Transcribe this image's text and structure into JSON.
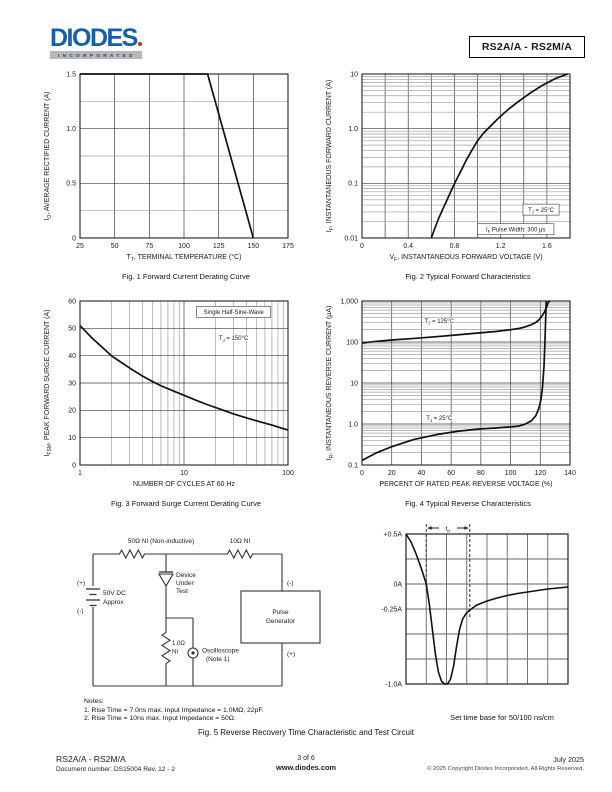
{
  "header": {
    "logo_text": "DIODES",
    "logo_sub": "INCORPORATED",
    "part_number": "RS2A/A - RS2M/A",
    "logo_color": "#155fa8",
    "accent_red": "#c9252c"
  },
  "chart_data": [
    {
      "id": "fig1",
      "type": "line",
      "title": "Fig. 1  Forward Current Derating Curve",
      "xlabel": "T~T~, TERMINAL TEMPERATURE (°C)",
      "ylabel": "I~O~, AVERAGE RECTIFIED CURRENT (A)",
      "x": {
        "scale": "linear",
        "min": 25,
        "max": 175,
        "grid_step": 25,
        "grid_majors": "all",
        "tick_vals": [
          25,
          50,
          75,
          100,
          125,
          150,
          175
        ],
        "tick_labels": [
          "25",
          "50",
          "75",
          "100",
          "125",
          "150",
          "175"
        ]
      },
      "y": {
        "scale": "linear",
        "min": 0,
        "max": 1.5,
        "grid_step": 0.25,
        "grid_majors": [
          0.5,
          1.0
        ],
        "tick_vals": [
          0,
          0.5,
          1.0,
          1.5
        ],
        "tick_labels": [
          "0",
          "0.5",
          "1.0",
          "1.5"
        ]
      },
      "series": [
        {
          "name": "average-rectified-current",
          "x": [
            25,
            117,
            150
          ],
          "y": [
            1.5,
            1.5,
            0
          ]
        }
      ],
      "annotations": []
    },
    {
      "id": "fig2",
      "type": "line",
      "title": "Fig. 2  Typical Forward Characteristics",
      "xlabel": "V~F~, INSTANTANEOUS FORWARD VOLTAGE (V)",
      "ylabel": "I~F~, INSTANTANEOUS FORWARD CURRENT (A)",
      "x": {
        "scale": "linear",
        "min": 0,
        "max": 1.8,
        "grid_step": 0.2,
        "grid_majors": "all",
        "tick_vals": [
          0,
          0.4,
          0.8,
          1.2,
          1.6
        ],
        "tick_labels": [
          "0",
          "0.4",
          "0.8",
          "1.2",
          "1.6"
        ]
      },
      "y": {
        "scale": "log",
        "min": 0.01,
        "max": 10,
        "tick_vals": [
          0.01,
          0.1,
          1,
          10
        ],
        "tick_labels": [
          "0.01",
          "0.1",
          "1.0",
          "10"
        ]
      },
      "series": [
        {
          "name": "forward-characteristic",
          "x": [
            0.6,
            0.63,
            0.66,
            0.7,
            0.74,
            0.78,
            0.82,
            0.86,
            0.9,
            0.95,
            1.0,
            1.05,
            1.1,
            1.18,
            1.26,
            1.35,
            1.45,
            1.56,
            1.67,
            1.78
          ],
          "y": [
            0.01,
            0.015,
            0.022,
            0.034,
            0.052,
            0.08,
            0.12,
            0.175,
            0.26,
            0.4,
            0.6,
            0.82,
            1.05,
            1.55,
            2.2,
            3.1,
            4.4,
            6.2,
            8.2,
            10
          ]
        }
      ],
      "annotations": [
        {
          "x": 1.55,
          "y": 0.033,
          "text": "T~J~ = 25°C",
          "boxed": true
        },
        {
          "x": 1.33,
          "y": 0.0145,
          "text": "I~F~ Pulse Width: 300 μs",
          "boxed": true
        }
      ]
    },
    {
      "id": "fig3",
      "type": "line",
      "title": "Fig. 3  Forward Surge Current Derating Curve",
      "xlabel": "NUMBER OF CYCLES AT 60 Hz",
      "ylabel": "I~FSM~, PEAK FORWARD SURGE CURRENT (A)",
      "x": {
        "scale": "log",
        "min": 1,
        "max": 100,
        "tick_vals": [
          1,
          10,
          100
        ],
        "tick_labels": [
          "1",
          "10",
          "100"
        ]
      },
      "y": {
        "scale": "linear",
        "min": 0,
        "max": 60,
        "grid_step": 10,
        "grid_majors": "all",
        "tick_vals": [
          0,
          10,
          20,
          30,
          40,
          50,
          60
        ],
        "tick_labels": [
          "0",
          "10",
          "20",
          "30",
          "40",
          "50",
          "60"
        ]
      },
      "series": [
        {
          "name": "surge-current",
          "x": [
            1,
            1.3,
            1.7,
            2,
            2.5,
            3,
            4,
            5,
            6,
            8,
            10,
            13,
            17,
            22,
            30,
            40,
            55,
            70,
            85,
            100
          ],
          "y": [
            51,
            46.5,
            42.5,
            40,
            37.5,
            35.5,
            32.5,
            30.5,
            29,
            27,
            25.5,
            23.7,
            22,
            20.5,
            18.7,
            17.2,
            15.7,
            14.6,
            13.6,
            12.8
          ]
        }
      ],
      "annotations": [
        {
          "x": 30,
          "y": 56,
          "text": "Single Half-Sine-Wave",
          "boxed": true
        },
        {
          "x": 30,
          "y": 46.5,
          "text": "T~J~ = 150°C",
          "boxed": false
        }
      ]
    },
    {
      "id": "fig4",
      "type": "line",
      "title": "Fig. 4 Typical Reverse Characteristics",
      "xlabel": "PERCENT OF RATED PEAK REVERSE VOLTAGE (%)",
      "ylabel": "I~R~, INSTANTANEOUS REVERSE CURRENT (μA)",
      "x": {
        "scale": "linear",
        "min": 0,
        "max": 140,
        "grid_step": 20,
        "grid_majors": "all",
        "tick_vals": [
          0,
          20,
          40,
          60,
          80,
          100,
          120,
          140
        ],
        "tick_labels": [
          "0",
          "20",
          "40",
          "60",
          "80",
          "100",
          "120",
          "140"
        ]
      },
      "y": {
        "scale": "log",
        "min": 0.1,
        "max": 1000,
        "tick_vals": [
          0.1,
          1,
          10,
          100,
          1000
        ],
        "tick_labels": [
          "0.1",
          "1.0",
          "10",
          "100",
          "1,000"
        ]
      },
      "series": [
        {
          "name": "reverse-current-125C",
          "x": [
            0,
            10,
            20,
            35,
            50,
            65,
            80,
            90,
            100,
            106,
            110,
            114,
            117,
            119,
            121,
            122.8,
            124.5,
            125.5,
            126.5
          ],
          "y": [
            95,
            104,
            112,
            122,
            135,
            150,
            168,
            180,
            200,
            215,
            235,
            265,
            300,
            345,
            420,
            540,
            750,
            950,
            1000
          ]
        },
        {
          "name": "reverse-current-25C",
          "x": [
            0,
            10,
            20,
            35,
            50,
            65,
            80,
            90,
            100,
            106,
            110,
            114,
            117,
            119,
            120.5,
            121.5,
            122.5,
            123.2,
            124
          ],
          "y": [
            0.13,
            0.2,
            0.28,
            0.42,
            0.55,
            0.67,
            0.76,
            0.8,
            0.85,
            0.9,
            1.0,
            1.2,
            1.6,
            2.4,
            4,
            8,
            25,
            120,
            1000
          ]
        }
      ],
      "annotations": [
        {
          "x": 52,
          "y": 330,
          "text": "T~J~ = 125°C",
          "boxed": false
        },
        {
          "x": 52,
          "y": 1.4,
          "text": "T~J~ = 25°C",
          "boxed": false
        }
      ]
    },
    {
      "id": "scope",
      "type": "line",
      "title": "Set time base for 50/100 ns/cm",
      "xlabel": "",
      "ylabel": "",
      "x": {
        "scale": "linear",
        "min": 0,
        "max": 8,
        "grid_step": 1
      },
      "y": {
        "scale": "linear",
        "min": -1.0,
        "max": 0.5,
        "grid_step": 0.25,
        "tick_vals": [
          0.5,
          0,
          -0.25,
          -1.0
        ],
        "tick_labels": [
          "+0.5A",
          "0A",
          "-0.25A",
          "-1.0A"
        ]
      },
      "series": [
        {
          "name": "reverse-recovery-waveform",
          "x": [
            0,
            0.25,
            0.5,
            0.75,
            1.0,
            1.15,
            1.3,
            1.45,
            1.6,
            1.75,
            1.9,
            2.05,
            2.2,
            2.35,
            2.5,
            2.65,
            2.8,
            2.95,
            3.15,
            3.5,
            4,
            4.5,
            5,
            5.5,
            6,
            6.5,
            7,
            7.5,
            8
          ],
          "y": [
            0.5,
            0.42,
            0.3,
            0.16,
            0,
            -0.2,
            -0.45,
            -0.7,
            -0.88,
            -0.97,
            -1.0,
            -1.0,
            -0.95,
            -0.82,
            -0.62,
            -0.45,
            -0.35,
            -0.3,
            -0.26,
            -0.21,
            -0.17,
            -0.14,
            -0.115,
            -0.095,
            -0.08,
            -0.065,
            -0.05,
            -0.04,
            -0.03
          ]
        }
      ],
      "markers": {
        "dash_x": [
          1.0,
          3.15
        ],
        "t_rr_label": "t~rr~"
      }
    }
  ],
  "circuit": {
    "r1_label": "50Ω NI (Non-inductive)",
    "r2_label": "10Ω NI",
    "dut_lines": [
      "Device",
      "Under",
      "Test"
    ],
    "source_plus": "(+)",
    "source_minus": "(-)",
    "source_lines": [
      "50V DC",
      "Approx"
    ],
    "shunt_lines": [
      "1.0Ω",
      "NI"
    ],
    "scope_lines": [
      "Oscilloscope",
      "(Note 1)"
    ],
    "generator_lines": [
      "Pulse",
      "Generator"
    ],
    "generator_minus": "(-)",
    "generator_plus": "(+)"
  },
  "notes": {
    "heading": "Notes:",
    "items": [
      "1. Rise Time = 7.0ns max. Input Impedance = 1.0MΩ, 22pF.",
      "2. Rise Time = 10ns max. Input Impedance = 50Ω."
    ]
  },
  "fig5_caption": "Fig. 5  Reverse Recovery Time Characteristic and Test Circuit",
  "footer": {
    "left_line1": "RS2A/A - RS2M/A",
    "left_line2": "Document number: DS15004 Rev. 12 - 2",
    "center_line1": "3 of 6",
    "center_line2": "www.diodes.com",
    "right_line1": "July 2025",
    "right_line2": "© 2025 Copyright Diodes Incorporated. All Rights Reserved."
  }
}
